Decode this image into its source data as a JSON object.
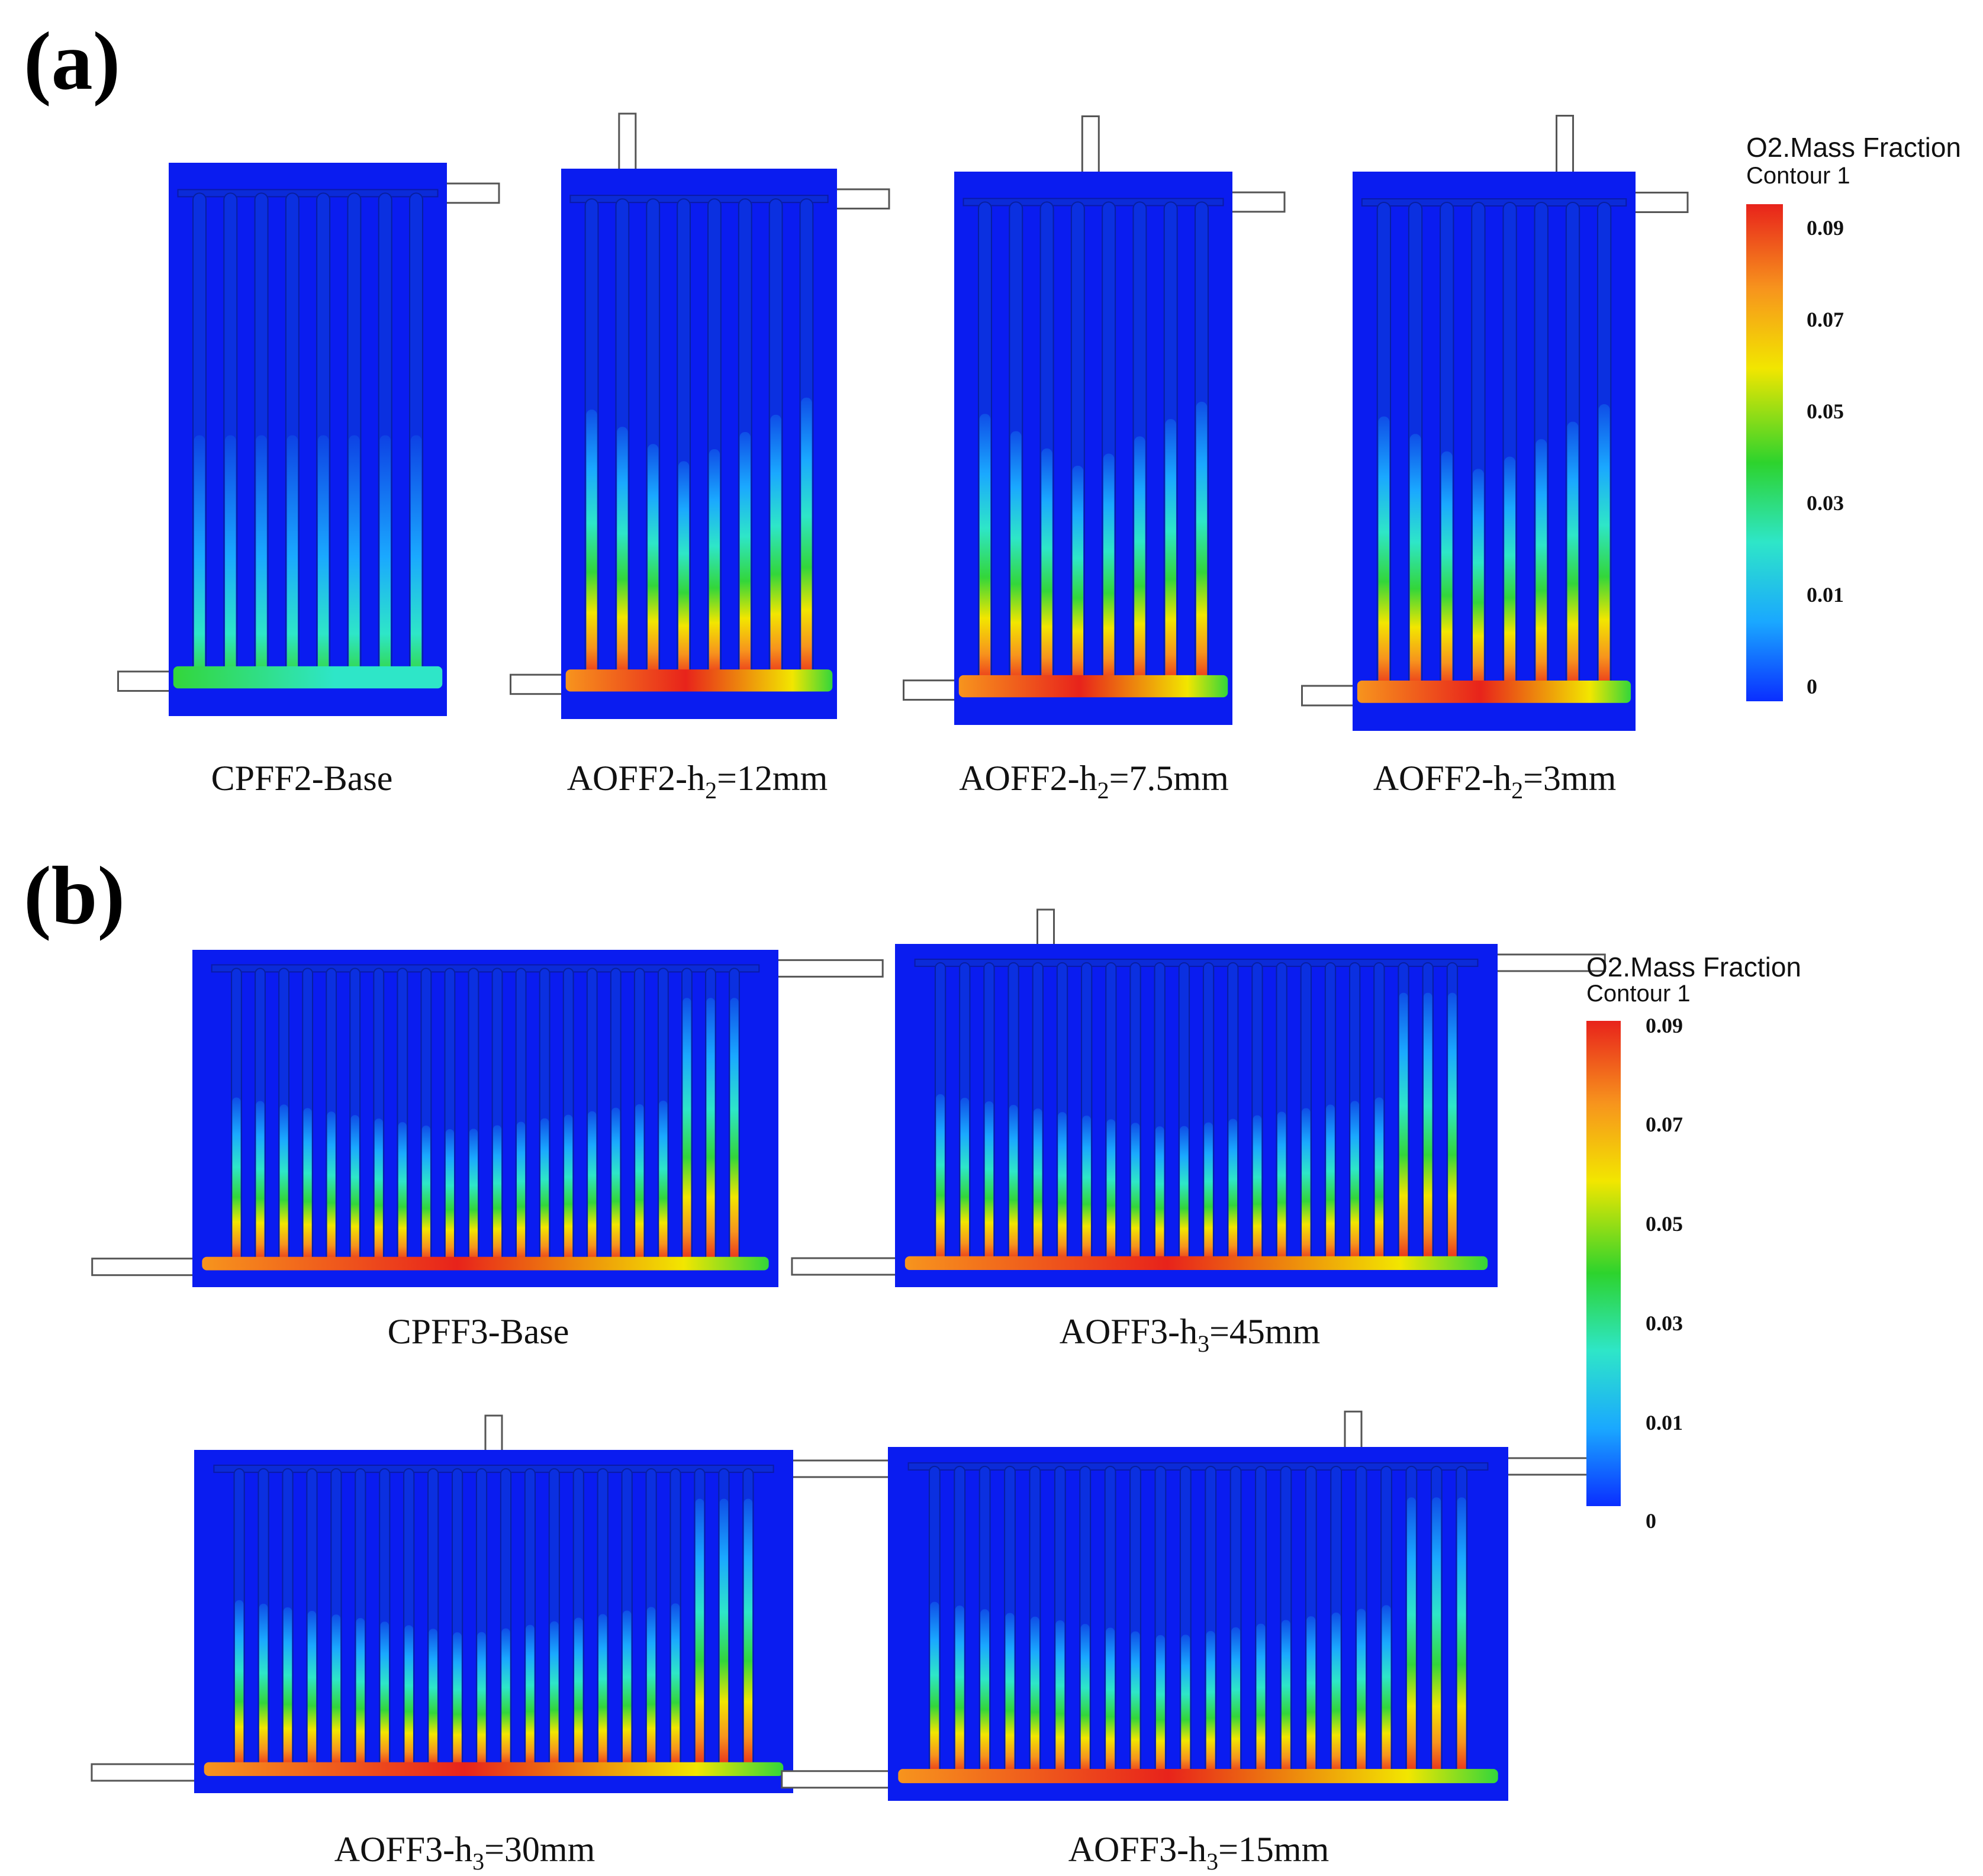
{
  "panels": {
    "a": {
      "label": "(a)"
    },
    "b": {
      "label": "(b)"
    }
  },
  "captions": {
    "cpff2_base": "CPFF2-Base",
    "aoff2_h2_12": {
      "pre": "AOFF2-h",
      "sub": "2",
      "post": "=12mm"
    },
    "aoff2_h2_7_5": {
      "pre": "AOFF2-h",
      "sub": "2",
      "post": "=7.5mm"
    },
    "aoff2_h2_3": {
      "pre": "AOFF2-h",
      "sub": "2",
      "post": "=3mm"
    },
    "cpff3_base": "CPFF3-Base",
    "aoff3_h3_45": {
      "pre": "AOFF3-h",
      "sub": "3",
      "post": "=45mm"
    },
    "aoff3_h3_30": {
      "pre": "AOFF3-h",
      "sub": "3",
      "post": "=30mm"
    },
    "aoff3_h3_15": {
      "pre": "AOFF3-h",
      "sub": "3",
      "post": "=15mm"
    }
  },
  "colorbar": {
    "title": "O2.Mass Fraction",
    "subtitle": "Contour 1",
    "ticks": [
      "0.09",
      "0.07",
      "0.05",
      "0.03",
      "0.01",
      "0"
    ],
    "colors": [
      "#e8231b",
      "#f7941d",
      "#f2e600",
      "#2dd32d",
      "#2ee6c8",
      "#1aa8ff",
      "#0a2eff"
    ]
  },
  "field_colors": {
    "background": "#0a1cf0",
    "low": "#1aa8ff",
    "mid": "#2ee6c8",
    "green": "#33d63a",
    "yellow": "#f2e600",
    "orange": "#f7941d",
    "red": "#e8231b"
  },
  "contours": {
    "cpff2_base": {
      "channels": 8,
      "intensity": 0.35
    },
    "aoff2_h2_12": {
      "channels": 8,
      "intensity": 1.0
    },
    "aoff2_h2_7_5": {
      "channels": 8,
      "intensity": 0.95
    },
    "aoff2_h2_3": {
      "channels": 8,
      "intensity": 0.9
    },
    "cpff3_base": {
      "channels": 22,
      "intensity": 0.8
    },
    "aoff3_h3_45": {
      "channels": 22,
      "intensity": 0.9
    },
    "aoff3_h3_30": {
      "channels": 22,
      "intensity": 0.85
    },
    "aoff3_h3_15": {
      "channels": 22,
      "intensity": 0.9
    }
  }
}
